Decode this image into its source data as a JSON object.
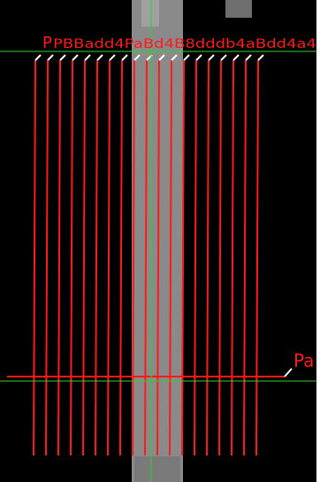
{
  "viewer": {
    "background_color": "#000000",
    "frame_color": "#ffffff",
    "crosshair_color": "#2fd12f",
    "path_color": "#ff1a1a",
    "marker_color": "#ffffff",
    "specimen_color": "#8c8c8c"
  },
  "vertical_path_labels": {
    "prefix": "P",
    "text": "PBBadd4PaBd4B8dddb4aBdd4a4"
  },
  "horizontal_path": {
    "label": "Pa"
  },
  "paths": {
    "vertical_count": 19
  }
}
